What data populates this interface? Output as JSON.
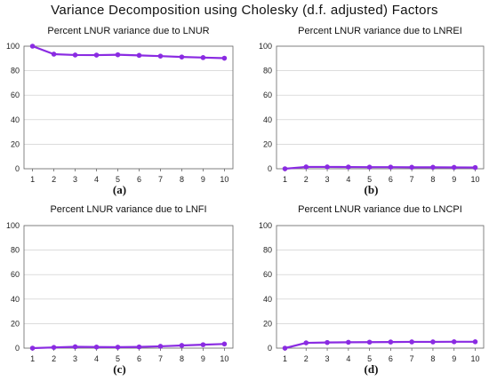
{
  "title": "Variance Decomposition using Cholesky (d.f. adjusted) Factors",
  "colors": {
    "series": "#8a2be2",
    "axis": "#666666",
    "grid": "#c8c8c8"
  },
  "chart_data": [
    {
      "type": "line",
      "title": "Percent LNUR variance due to LNUR",
      "panel_label": "(a)",
      "x": [
        1,
        2,
        3,
        4,
        5,
        6,
        7,
        8,
        9,
        10
      ],
      "series": [
        {
          "values": [
            100,
            93.5,
            92.8,
            92.7,
            93,
            92.5,
            91.9,
            91.2,
            90.7,
            90.2
          ]
        }
      ],
      "xticks": [
        "1",
        "2",
        "3",
        "4",
        "5",
        "6",
        "7",
        "8",
        "9",
        "10"
      ],
      "yticks": [
        "0",
        "20",
        "40",
        "60",
        "80",
        "100"
      ],
      "ylim": [
        0,
        100
      ],
      "xlim": [
        0.6,
        10.4
      ]
    },
    {
      "type": "line",
      "title": "Percent LNUR variance due to LNREI",
      "panel_label": "(b)",
      "x": [
        1,
        2,
        3,
        4,
        5,
        6,
        7,
        8,
        9,
        10
      ],
      "series": [
        {
          "values": [
            0,
            1.5,
            1.5,
            1.4,
            1.3,
            1.3,
            1.2,
            1.2,
            1.1,
            1.0
          ]
        }
      ],
      "xticks": [
        "1",
        "2",
        "3",
        "4",
        "5",
        "6",
        "7",
        "8",
        "9",
        "10"
      ],
      "yticks": [
        "0",
        "20",
        "40",
        "60",
        "80",
        "100"
      ],
      "ylim": [
        0,
        100
      ],
      "xlim": [
        0.6,
        10.4
      ]
    },
    {
      "type": "line",
      "title": "Percent LNUR variance due to LNFI",
      "panel_label": "(c)",
      "x": [
        1,
        2,
        3,
        4,
        5,
        6,
        7,
        8,
        9,
        10
      ],
      "series": [
        {
          "values": [
            0,
            0.6,
            1.1,
            0.9,
            0.8,
            1.0,
            1.5,
            2.2,
            2.8,
            3.4
          ]
        }
      ],
      "xticks": [
        "1",
        "2",
        "3",
        "4",
        "5",
        "6",
        "7",
        "8",
        "9",
        "10"
      ],
      "yticks": [
        "0",
        "20",
        "40",
        "60",
        "80",
        "100"
      ],
      "ylim": [
        0,
        100
      ],
      "xlim": [
        0.6,
        10.4
      ]
    },
    {
      "type": "line",
      "title": "Percent LNUR variance due to LNCPI",
      "panel_label": "(d)",
      "x": [
        1,
        2,
        3,
        4,
        5,
        6,
        7,
        8,
        9,
        10
      ],
      "series": [
        {
          "values": [
            0,
            4.3,
            4.6,
            4.8,
            4.9,
            5.0,
            5.1,
            5.1,
            5.2,
            5.2
          ]
        }
      ],
      "xticks": [
        "1",
        "2",
        "3",
        "4",
        "5",
        "6",
        "7",
        "8",
        "9",
        "10"
      ],
      "yticks": [
        "0",
        "20",
        "40",
        "60",
        "80",
        "100"
      ],
      "ylim": [
        0,
        100
      ],
      "xlim": [
        0.6,
        10.4
      ]
    }
  ]
}
